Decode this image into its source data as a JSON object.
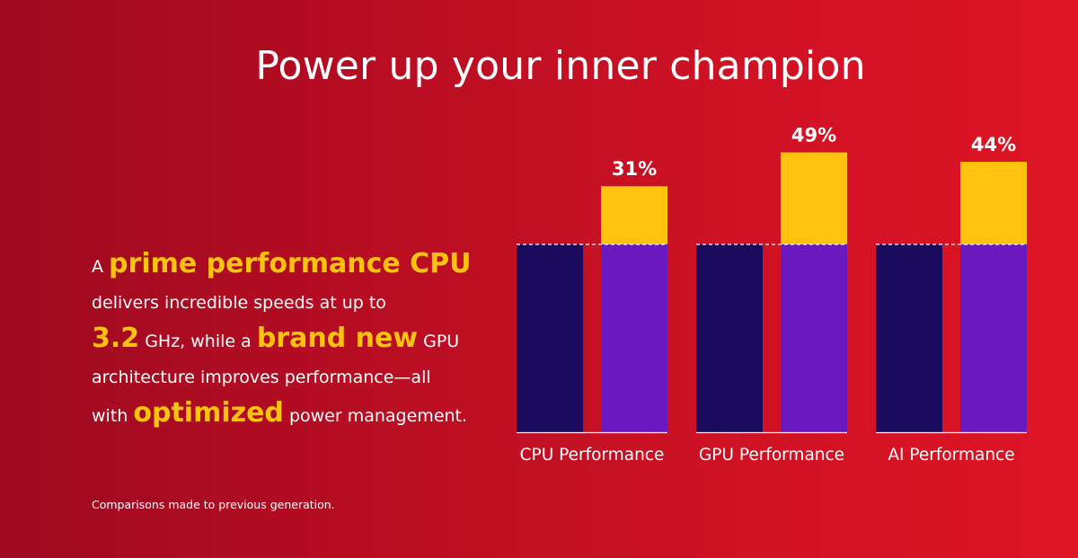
{
  "title": "Power up your inner champion",
  "blurb": {
    "s1_pre": "A",
    "s1_hl": "prime performance CPU",
    "s2": "delivers incredible speeds at up to",
    "s3_hl": "3.2",
    "s3_mid": "GHz, while a",
    "s3_hl2": "brand new",
    "s3_post": "GPU",
    "s4": "architecture improves performance—all",
    "s5_pre": "with",
    "s5_hl": "optimized",
    "s5_post": "power management."
  },
  "footnote": "Comparisons made to previous generation.",
  "colors": {
    "previous_bar": "#1b0a5e",
    "new_bar": "#6a18c0",
    "gain_bar": "#ffc20e",
    "highlight_text": "#ffc20e"
  },
  "chart_data": {
    "type": "bar",
    "categories": [
      "CPU Performance",
      "GPU Performance",
      "AI Performance"
    ],
    "baseline": 100,
    "series": [
      {
        "values": [
          100,
          100,
          100
        ]
      },
      {
        "values": [
          131,
          149,
          144
        ]
      }
    ],
    "data_labels": [
      "31%",
      "49%",
      "44%"
    ]
  }
}
